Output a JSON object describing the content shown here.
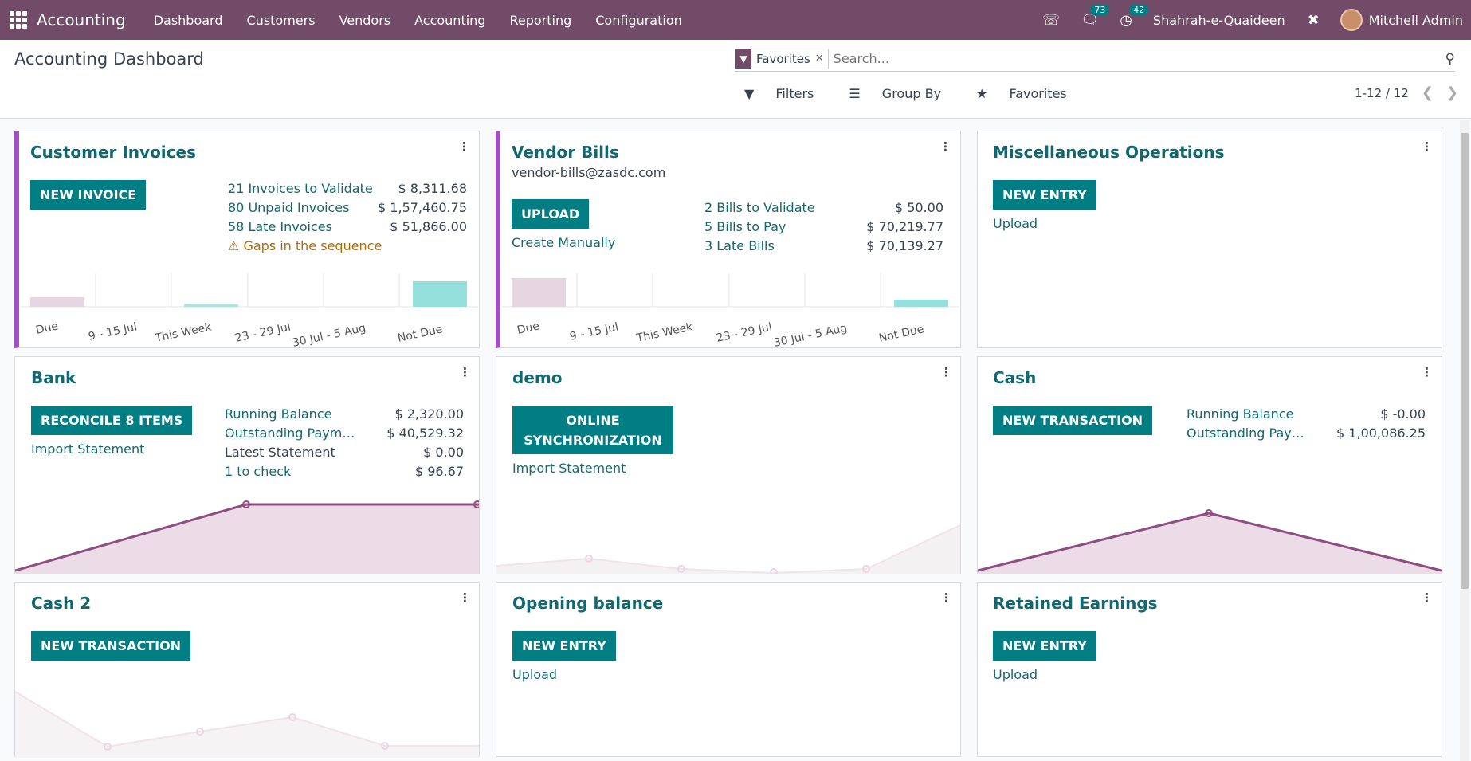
{
  "nav": {
    "app_name": "Accounting",
    "menu": [
      "Dashboard",
      "Customers",
      "Vendors",
      "Accounting",
      "Reporting",
      "Configuration"
    ],
    "messages_count": "73",
    "activities_count": "42",
    "company": "Shahrah-e-Quaideen",
    "user": "Mitchell Admin"
  },
  "control": {
    "title": "Accounting Dashboard",
    "facet": "Favorites",
    "search_placeholder": "Search...",
    "filters": "Filters",
    "group_by": "Group By",
    "favorites": "Favorites",
    "pager": "1-12 / 12"
  },
  "colors": {
    "brand": "#714b67",
    "accent_button": "#017e84",
    "link": "#116870",
    "sale_border": "#a24fc0"
  },
  "cards": {
    "customer_invoices": {
      "title": "Customer Invoices",
      "button": "New Invoice",
      "rows": [
        {
          "label": "21 Invoices to Validate",
          "value": "$ 8,311.68"
        },
        {
          "label": "80 Unpaid Invoices",
          "value": "$ 1,57,460.75"
        },
        {
          "label": "58 Late Invoices",
          "value": "$ 51,866.00"
        }
      ],
      "warning": "Gaps in the sequence",
      "chart_labels": [
        "Due",
        "9 - 15 Jul",
        "This Week",
        "23 - 29 Jul",
        "30 Jul - 5 Aug",
        "Not Due"
      ]
    },
    "vendor_bills": {
      "title": "Vendor Bills",
      "email": "vendor-bills@zasdc.com",
      "button": "Upload",
      "link": "Create Manually",
      "rows": [
        {
          "label": "2 Bills to Validate",
          "value": "$ 50.00"
        },
        {
          "label": "5 Bills to Pay",
          "value": "$ 70,219.77"
        },
        {
          "label": "3 Late Bills",
          "value": "$ 70,139.27"
        }
      ],
      "chart_labels": [
        "Due",
        "9 - 15 Jul",
        "This Week",
        "23 - 29 Jul",
        "30 Jul - 5 Aug",
        "Not Due"
      ]
    },
    "misc": {
      "title": "Miscellaneous Operations",
      "button": "New Entry",
      "link": "Upload"
    },
    "bank": {
      "title": "Bank",
      "button": "Reconcile 8 Items",
      "link": "Import Statement",
      "rows": [
        {
          "label": "Running Balance",
          "value": "$ 2,320.00"
        },
        {
          "label": "Outstanding Paymen...",
          "value": "$ 40,529.32"
        },
        {
          "label": "Latest Statement",
          "value": "$ 0.00"
        },
        {
          "label": "1 to check",
          "value": "$ 96.67"
        }
      ]
    },
    "demo": {
      "title": "demo",
      "button": "Online Synchronization",
      "link": "Import Statement"
    },
    "cash": {
      "title": "Cash",
      "button": "New Transaction",
      "rows": [
        {
          "label": "Running Balance",
          "value": "$ -0.00"
        },
        {
          "label": "Outstanding Paym...",
          "value": "$ 1,00,086.25"
        }
      ]
    },
    "cash2": {
      "title": "Cash 2",
      "button": "New Transaction"
    },
    "opening": {
      "title": "Opening balance",
      "button": "New Entry",
      "link": "Upload"
    },
    "retained": {
      "title": "Retained Earnings",
      "button": "New Entry",
      "link": "Upload"
    }
  }
}
